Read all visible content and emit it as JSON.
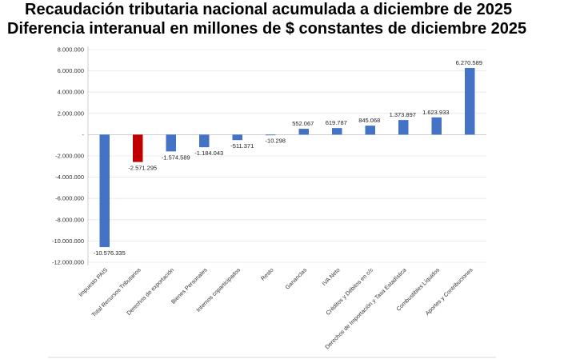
{
  "title_line1": "Recaudación tributaria nacional acumulada a diciembre de 2025",
  "title_line2": "Diferencia interanual en millones de $ constantes de diciembre 2025",
  "colors": {
    "positive": "#4472c4",
    "highlight": "#c00000",
    "grid": "#e6e6e6",
    "axis": "#bfbfbf"
  },
  "chart_data": {
    "type": "bar",
    "title": "Recaudación tributaria nacional acumulada a diciembre de 2025 — Diferencia interanual en millones de $ constantes de diciembre 2025",
    "categories": [
      "Impuesto PAIS",
      "Total Recursos Tributarios",
      "Derechos de exportación",
      "Bienes Personales",
      "Internos coparticipados",
      "Resto",
      "Ganancias",
      "IVA Neto",
      "Créditos y Débitos en c/c",
      "Derechos de Importación y Tasa Estadística",
      "Combustibles Líquidos",
      "Aportes y Contribuciones"
    ],
    "values": [
      -10576335,
      -2571295,
      -1574589,
      -1184043,
      -511371,
      -10298,
      552067,
      619787,
      845068,
      1373897,
      1623933,
      6270589
    ],
    "data_labels": [
      "-10.576.335",
      "-2.571.295",
      "-1.574.589",
      "-1.184.043",
      "-511.371",
      "-10.298",
      "552.067",
      "619.787",
      "845.068",
      "1.373.897",
      "1.623.933",
      "6.270.589"
    ],
    "highlight_index": 1,
    "ylim": [
      -12000000,
      8000000
    ],
    "yticks": [
      8000000,
      6000000,
      4000000,
      2000000,
      0,
      -2000000,
      -4000000,
      -6000000,
      -8000000,
      -10000000,
      -12000000
    ],
    "ytick_labels": [
      "8.000.000",
      "6.000.000",
      "4.000.000",
      "2.000.000",
      "-",
      "-2.000.000",
      "-4.000.000",
      "-6.000.000",
      "-8.000.000",
      "-10.000.000",
      "-12.000.000"
    ],
    "grid": true,
    "xlabel": "",
    "ylabel": ""
  }
}
